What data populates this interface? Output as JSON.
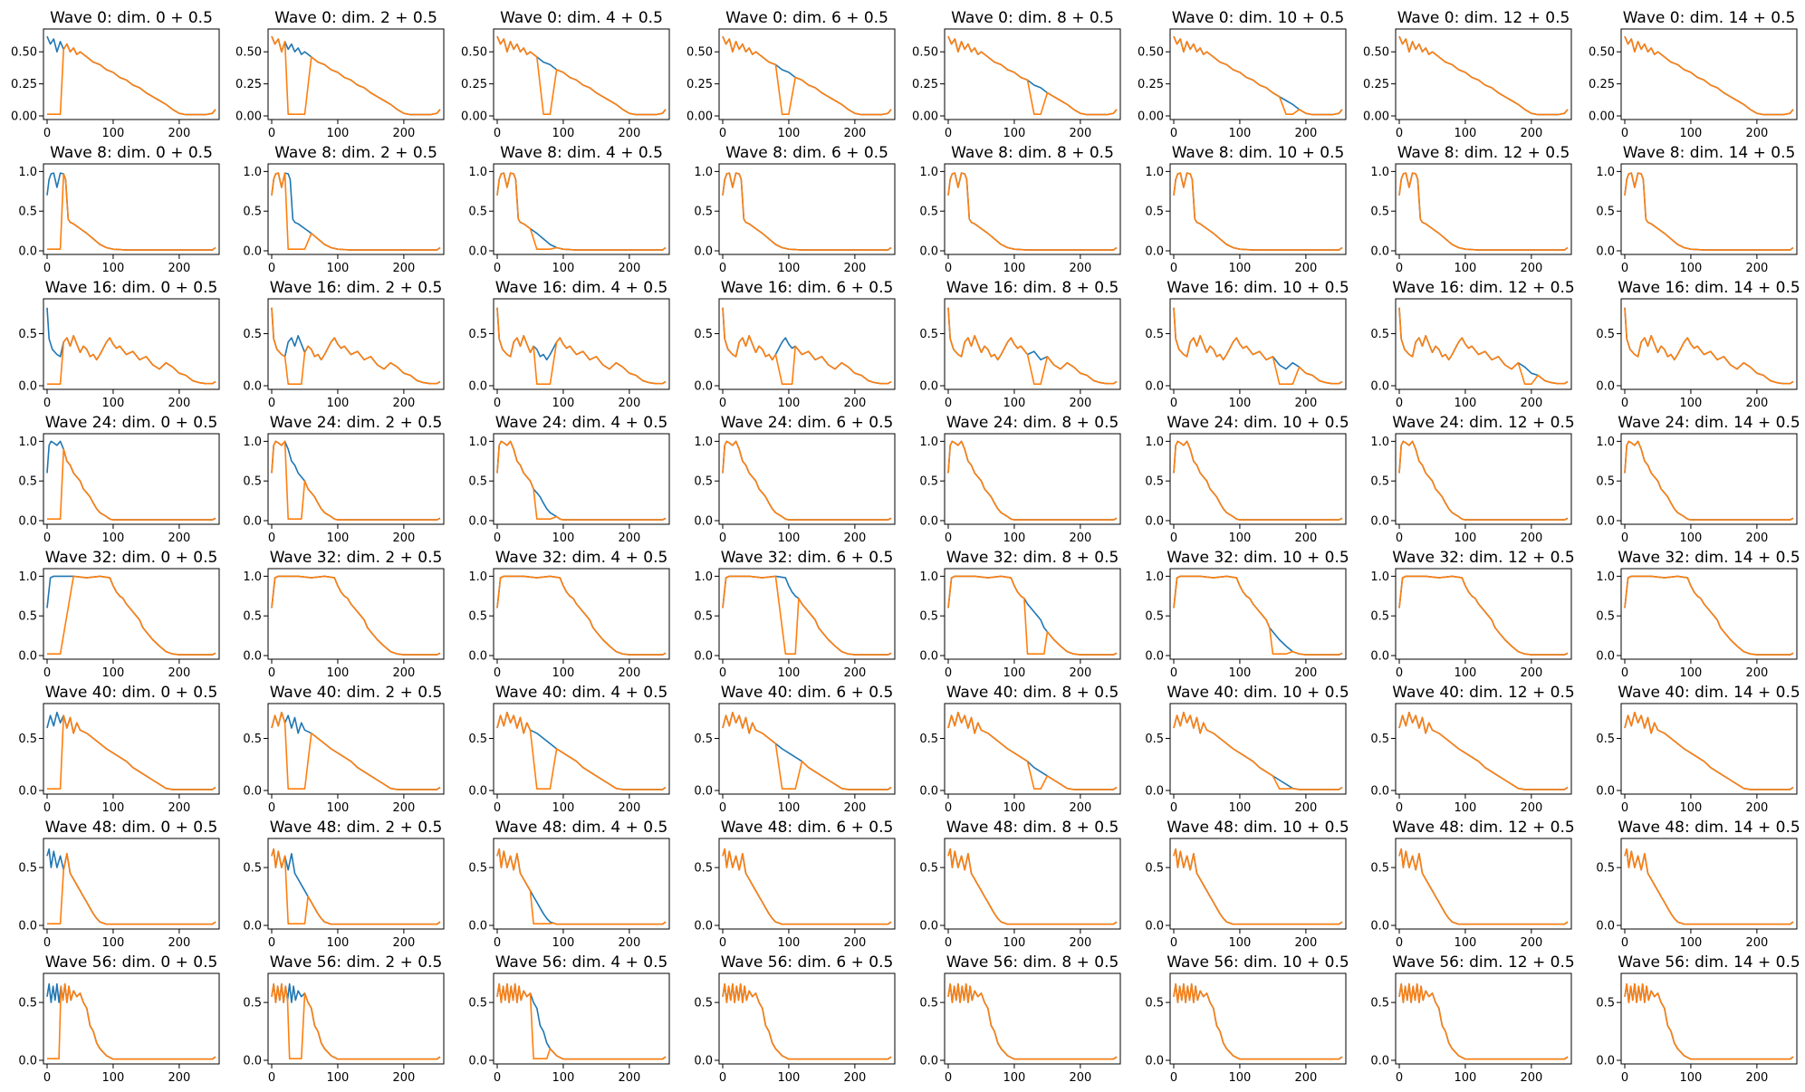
{
  "colors": {
    "original": "#1f77b4",
    "modified": "#ff7f0e"
  },
  "chart_data": {
    "type": "line",
    "layout": "grid of 8 rows x 8 columns of small line plots",
    "x_range": [
      0,
      255
    ],
    "x_ticks": [
      "0",
      "100",
      "200"
    ],
    "grid": false,
    "legend": "none",
    "rows": [
      {
        "wave": 0,
        "y_ticks": [
          "0.00",
          "0.25",
          "0.50"
        ],
        "ylim": [
          0,
          0.65
        ],
        "titles": [
          "Wave 0: dim. 0 + 0.5",
          "Wave 0: dim. 2 + 0.5",
          "Wave 0: dim. 4 + 0.5",
          "Wave 0: dim. 6 + 0.5",
          "Wave 0: dim. 8 + 0.5",
          "Wave 0: dim. 10 + 0.5",
          "Wave 0: dim. 12 + 0.5",
          "Wave 0: dim. 14 + 0.5"
        ],
        "dip_start": [
          0,
          25,
          65,
          90,
          125,
          165,
          null,
          null
        ],
        "dip_end": [
          20,
          55,
          85,
          105,
          145,
          180,
          null,
          null
        ],
        "base": {
          "x": [
            0,
            5,
            10,
            15,
            20,
            25,
            30,
            35,
            40,
            45,
            50,
            60,
            70,
            80,
            90,
            100,
            110,
            120,
            130,
            140,
            150,
            160,
            170,
            180,
            190,
            200,
            210,
            220,
            230,
            240,
            250,
            255
          ],
          "y": [
            0.62,
            0.56,
            0.6,
            0.5,
            0.58,
            0.52,
            0.56,
            0.5,
            0.53,
            0.48,
            0.5,
            0.46,
            0.42,
            0.4,
            0.36,
            0.34,
            0.3,
            0.28,
            0.24,
            0.22,
            0.18,
            0.15,
            0.12,
            0.09,
            0.05,
            0.02,
            0.01,
            0.01,
            0.01,
            0.01,
            0.02,
            0.05
          ]
        }
      },
      {
        "wave": 8,
        "y_ticks": [
          "0.0",
          "0.5",
          "1.0"
        ],
        "ylim": [
          0,
          1.05
        ],
        "titles": [
          "Wave 8: dim. 0 + 0.5",
          "Wave 8: dim. 2 + 0.5",
          "Wave 8: dim. 4 + 0.5",
          "Wave 8: dim. 6 + 0.5",
          "Wave 8: dim. 8 + 0.5",
          "Wave 8: dim. 10 + 0.5",
          "Wave 8: dim. 12 + 0.5",
          "Wave 8: dim. 14 + 0.5"
        ],
        "dip_start": [
          0,
          25,
          55,
          null,
          null,
          null,
          null,
          null
        ],
        "dip_end": [
          20,
          50,
          80,
          null,
          null,
          null,
          null,
          null
        ],
        "base": {
          "x": [
            0,
            3,
            6,
            10,
            15,
            20,
            25,
            28,
            32,
            35,
            40,
            50,
            60,
            70,
            80,
            90,
            100,
            120,
            150,
            200,
            250,
            255
          ],
          "y": [
            0.7,
            0.9,
            0.97,
            0.98,
            0.8,
            0.98,
            0.97,
            0.9,
            0.4,
            0.36,
            0.34,
            0.28,
            0.22,
            0.15,
            0.08,
            0.04,
            0.02,
            0.01,
            0.01,
            0.01,
            0.01,
            0.04
          ]
        }
      },
      {
        "wave": 16,
        "y_ticks": [
          "0.0",
          "0.5"
        ],
        "ylim": [
          0,
          0.8
        ],
        "titles": [
          "Wave 16: dim. 0 + 0.5",
          "Wave 16: dim. 2 + 0.5",
          "Wave 16: dim. 4 + 0.5",
          "Wave 16: dim. 6 + 0.5",
          "Wave 16: dim. 8 + 0.5",
          "Wave 16: dim. 10 + 0.5",
          "Wave 16: dim. 12 + 0.5",
          "Wave 16: dim. 14 + 0.5"
        ],
        "dip_start": [
          0,
          25,
          60,
          85,
          125,
          160,
          190,
          null
        ],
        "dip_end": [
          20,
          45,
          80,
          105,
          140,
          180,
          200,
          null
        ],
        "base": {
          "x": [
            0,
            3,
            8,
            15,
            20,
            25,
            30,
            35,
            40,
            45,
            50,
            55,
            60,
            65,
            70,
            75,
            80,
            90,
            95,
            100,
            105,
            110,
            120,
            130,
            140,
            150,
            160,
            170,
            180,
            190,
            200,
            210,
            220,
            230,
            240,
            250,
            255
          ],
          "y": [
            0.75,
            0.45,
            0.35,
            0.3,
            0.28,
            0.42,
            0.46,
            0.38,
            0.48,
            0.4,
            0.32,
            0.38,
            0.35,
            0.28,
            0.3,
            0.25,
            0.3,
            0.42,
            0.46,
            0.4,
            0.36,
            0.38,
            0.3,
            0.33,
            0.25,
            0.28,
            0.2,
            0.16,
            0.22,
            0.18,
            0.12,
            0.1,
            0.05,
            0.03,
            0.02,
            0.02,
            0.04
          ]
        }
      },
      {
        "wave": 24,
        "y_ticks": [
          "0.0",
          "0.5",
          "1.0"
        ],
        "ylim": [
          0,
          1.05
        ],
        "titles": [
          "Wave 24: dim. 0 + 0.5",
          "Wave 24: dim. 2 + 0.5",
          "Wave 24: dim. 4 + 0.5",
          "Wave 24: dim. 6 + 0.5",
          "Wave 24: dim. 8 + 0.5",
          "Wave 24: dim. 10 + 0.5",
          "Wave 24: dim. 12 + 0.5",
          "Wave 24: dim. 14 + 0.5"
        ],
        "dip_start": [
          0,
          25,
          60,
          null,
          null,
          null,
          null,
          null
        ],
        "dip_end": [
          20,
          45,
          80,
          null,
          null,
          null,
          null,
          null
        ],
        "base": {
          "x": [
            0,
            3,
            6,
            10,
            15,
            20,
            25,
            30,
            35,
            40,
            45,
            50,
            55,
            60,
            65,
            70,
            75,
            80,
            90,
            95,
            100,
            150,
            200,
            250,
            255
          ],
          "y": [
            0.6,
            0.95,
            1.0,
            0.98,
            0.95,
            1.0,
            0.9,
            0.75,
            0.7,
            0.6,
            0.55,
            0.5,
            0.4,
            0.35,
            0.3,
            0.22,
            0.15,
            0.1,
            0.05,
            0.02,
            0.01,
            0.01,
            0.01,
            0.01,
            0.03
          ]
        }
      },
      {
        "wave": 32,
        "y_ticks": [
          "0.0",
          "0.5",
          "1.0"
        ],
        "ylim": [
          0,
          1.05
        ],
        "titles": [
          "Wave 32: dim. 0 + 0.5",
          "Wave 32: dim. 2 + 0.5",
          "Wave 32: dim. 4 + 0.5",
          "Wave 32: dim. 6 + 0.5",
          "Wave 32: dim. 8 + 0.5",
          "Wave 32: dim. 10 + 0.5",
          "Wave 32: dim. 12 + 0.5",
          "Wave 32: dim. 14 + 0.5"
        ],
        "dip_start": [
          0,
          null,
          null,
          90,
          120,
          150,
          null,
          null
        ],
        "dip_end": [
          20,
          null,
          null,
          110,
          145,
          170,
          null,
          null
        ],
        "base": {
          "x": [
            0,
            5,
            10,
            20,
            40,
            60,
            80,
            95,
            100,
            105,
            110,
            115,
            120,
            125,
            130,
            135,
            140,
            145,
            150,
            160,
            170,
            180,
            190,
            200,
            250,
            255
          ],
          "y": [
            0.6,
            0.98,
            1.0,
            1.0,
            1.0,
            0.98,
            1.0,
            0.98,
            0.88,
            0.8,
            0.75,
            0.72,
            0.65,
            0.6,
            0.55,
            0.5,
            0.45,
            0.35,
            0.3,
            0.2,
            0.12,
            0.05,
            0.02,
            0.01,
            0.01,
            0.03
          ]
        }
      },
      {
        "wave": 40,
        "y_ticks": [
          "0.0",
          "0.5"
        ],
        "ylim": [
          0,
          0.8
        ],
        "titles": [
          "Wave 40: dim. 0 + 0.5",
          "Wave 40: dim. 2 + 0.5",
          "Wave 40: dim. 4 + 0.5",
          "Wave 40: dim. 6 + 0.5",
          "Wave 40: dim. 8 + 0.5",
          "Wave 40: dim. 10 + 0.5",
          "Wave 40: dim. 12 + 0.5",
          "Wave 40: dim. 14 + 0.5"
        ],
        "dip_start": [
          0,
          25,
          60,
          90,
          125,
          160,
          null,
          null
        ],
        "dip_end": [
          20,
          50,
          80,
          110,
          145,
          175,
          null,
          null
        ],
        "base": {
          "x": [
            0,
            5,
            10,
            15,
            20,
            25,
            30,
            35,
            40,
            45,
            50,
            60,
            70,
            80,
            90,
            100,
            110,
            120,
            130,
            140,
            150,
            160,
            170,
            180,
            190,
            200,
            250,
            255
          ],
          "y": [
            0.6,
            0.72,
            0.62,
            0.75,
            0.65,
            0.72,
            0.6,
            0.7,
            0.55,
            0.65,
            0.58,
            0.55,
            0.5,
            0.45,
            0.4,
            0.36,
            0.32,
            0.28,
            0.22,
            0.18,
            0.14,
            0.1,
            0.06,
            0.02,
            0.01,
            0.01,
            0.01,
            0.03
          ]
        }
      },
      {
        "wave": 48,
        "y_ticks": [
          "0.0",
          "0.5"
        ],
        "ylim": [
          0,
          0.72
        ],
        "titles": [
          "Wave 48: dim. 0 + 0.5",
          "Wave 48: dim. 2 + 0.5",
          "Wave 48: dim. 4 + 0.5",
          "Wave 48: dim. 6 + 0.5",
          "Wave 48: dim. 8 + 0.5",
          "Wave 48: dim. 10 + 0.5",
          "Wave 48: dim. 12 + 0.5",
          "Wave 48: dim. 14 + 0.5"
        ],
        "dip_start": [
          0,
          25,
          55,
          null,
          null,
          null,
          null,
          null
        ],
        "dip_end": [
          20,
          50,
          80,
          null,
          null,
          null,
          null,
          null
        ],
        "base": {
          "x": [
            0,
            3,
            6,
            10,
            15,
            20,
            25,
            30,
            35,
            40,
            45,
            50,
            55,
            60,
            65,
            70,
            75,
            80,
            85,
            90,
            100,
            150,
            200,
            250,
            255
          ],
          "y": [
            0.6,
            0.66,
            0.5,
            0.64,
            0.5,
            0.6,
            0.48,
            0.62,
            0.45,
            0.4,
            0.35,
            0.3,
            0.25,
            0.2,
            0.15,
            0.1,
            0.06,
            0.03,
            0.02,
            0.01,
            0.01,
            0.01,
            0.01,
            0.01,
            0.03
          ]
        }
      },
      {
        "wave": 56,
        "y_ticks": [
          "0.0",
          "0.5"
        ],
        "ylim": [
          0,
          0.72
        ],
        "titles": [
          "Wave 56: dim. 0 + 0.5",
          "Wave 56: dim. 2 + 0.5",
          "Wave 56: dim. 4 + 0.5",
          "Wave 56: dim. 6 + 0.5",
          "Wave 56: dim. 8 + 0.5",
          "Wave 56: dim. 10 + 0.5",
          "Wave 56: dim. 12 + 0.5",
          "Wave 56: dim. 14 + 0.5"
        ],
        "dip_start": [
          0,
          25,
          55,
          null,
          null,
          null,
          null,
          null
        ],
        "dip_end": [
          20,
          45,
          75,
          null,
          null,
          null,
          null,
          null
        ],
        "base": {
          "x": [
            0,
            3,
            6,
            9,
            12,
            15,
            18,
            21,
            24,
            27,
            30,
            33,
            36,
            40,
            45,
            50,
            55,
            60,
            65,
            70,
            75,
            80,
            90,
            100,
            150,
            200,
            250,
            255
          ],
          "y": [
            0.55,
            0.66,
            0.5,
            0.64,
            0.52,
            0.66,
            0.5,
            0.64,
            0.52,
            0.66,
            0.5,
            0.64,
            0.52,
            0.6,
            0.55,
            0.58,
            0.5,
            0.45,
            0.3,
            0.25,
            0.15,
            0.1,
            0.04,
            0.01,
            0.01,
            0.01,
            0.01,
            0.03
          ]
        }
      }
    ]
  }
}
